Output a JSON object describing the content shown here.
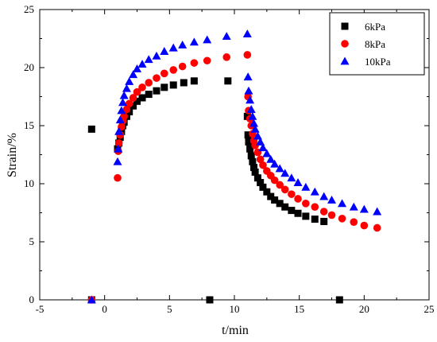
{
  "chart_data": {
    "type": "scatter",
    "title": "",
    "xlabel": "t/min",
    "ylabel": "Strain/%",
    "xlim": [
      -5,
      25
    ],
    "ylim": [
      0,
      25
    ],
    "x_ticks": [
      "-5",
      "0",
      "5",
      "10",
      "15",
      "20",
      "25"
    ],
    "y_ticks": [
      "0",
      "5",
      "10",
      "15",
      "20",
      "25"
    ],
    "grid": false,
    "legend_position": "top-right",
    "series": [
      {
        "name": "6kPa",
        "marker": "square",
        "color": "#000000",
        "points": [
          [
            -1,
            14.7
          ],
          [
            -1,
            0
          ],
          [
            1.0,
            13.0
          ],
          [
            1.1,
            13.5
          ],
          [
            1.2,
            14.0
          ],
          [
            1.3,
            14.5
          ],
          [
            1.4,
            15.0
          ],
          [
            1.5,
            15.3
          ],
          [
            1.7,
            15.8
          ],
          [
            1.9,
            16.2
          ],
          [
            2.2,
            16.7
          ],
          [
            2.5,
            17.1
          ],
          [
            2.9,
            17.4
          ],
          [
            3.4,
            17.7
          ],
          [
            4.0,
            18.0
          ],
          [
            4.6,
            18.3
          ],
          [
            5.3,
            18.5
          ],
          [
            6.1,
            18.7
          ],
          [
            6.9,
            18.85
          ],
          [
            8.1,
            0
          ],
          [
            9.5,
            18.85
          ],
          [
            11.0,
            15.8
          ],
          [
            11.05,
            14.2
          ],
          [
            11.1,
            13.6
          ],
          [
            11.2,
            13.0
          ],
          [
            11.3,
            12.4
          ],
          [
            11.4,
            11.9
          ],
          [
            11.5,
            11.4
          ],
          [
            11.6,
            11.0
          ],
          [
            11.8,
            10.5
          ],
          [
            12.0,
            10.1
          ],
          [
            12.2,
            9.7
          ],
          [
            12.5,
            9.3
          ],
          [
            12.8,
            8.9
          ],
          [
            13.1,
            8.6
          ],
          [
            13.5,
            8.3
          ],
          [
            13.9,
            8.0
          ],
          [
            14.4,
            7.7
          ],
          [
            14.9,
            7.45
          ],
          [
            15.5,
            7.2
          ],
          [
            16.2,
            6.95
          ],
          [
            16.9,
            6.75
          ],
          [
            18.1,
            0
          ]
        ]
      },
      {
        "name": "8kPa",
        "marker": "circle",
        "color": "#ff0000",
        "points": [
          [
            -1,
            0
          ],
          [
            1.0,
            10.5
          ],
          [
            1.05,
            12.8
          ],
          [
            1.1,
            13.5
          ],
          [
            1.2,
            14.2
          ],
          [
            1.3,
            14.9
          ],
          [
            1.4,
            15.4
          ],
          [
            1.5,
            15.8
          ],
          [
            1.7,
            16.4
          ],
          [
            1.9,
            16.9
          ],
          [
            2.2,
            17.4
          ],
          [
            2.5,
            17.9
          ],
          [
            2.9,
            18.3
          ],
          [
            3.4,
            18.7
          ],
          [
            4.0,
            19.1
          ],
          [
            4.6,
            19.5
          ],
          [
            5.3,
            19.8
          ],
          [
            6.0,
            20.1
          ],
          [
            6.9,
            20.4
          ],
          [
            7.9,
            20.6
          ],
          [
            9.4,
            20.9
          ],
          [
            11.0,
            21.1
          ],
          [
            11.05,
            17.5
          ],
          [
            11.1,
            16.3
          ],
          [
            11.2,
            15.6
          ],
          [
            11.3,
            15.0
          ],
          [
            11.4,
            14.3
          ],
          [
            11.5,
            13.7
          ],
          [
            11.6,
            13.3
          ],
          [
            11.8,
            12.7
          ],
          [
            12.0,
            12.1
          ],
          [
            12.2,
            11.6
          ],
          [
            12.5,
            11.1
          ],
          [
            12.8,
            10.7
          ],
          [
            13.1,
            10.3
          ],
          [
            13.5,
            9.9
          ],
          [
            13.9,
            9.5
          ],
          [
            14.4,
            9.1
          ],
          [
            14.9,
            8.7
          ],
          [
            15.5,
            8.3
          ],
          [
            16.2,
            8.0
          ],
          [
            16.9,
            7.6
          ],
          [
            17.5,
            7.3
          ],
          [
            18.3,
            7.0
          ],
          [
            19.2,
            6.7
          ],
          [
            20.0,
            6.4
          ],
          [
            21.0,
            6.2
          ]
        ]
      },
      {
        "name": "10kPa",
        "marker": "triangle",
        "color": "#0000ff",
        "points": [
          [
            -1,
            0
          ],
          [
            1.0,
            11.9
          ],
          [
            1.05,
            13.0
          ],
          [
            1.1,
            14.5
          ],
          [
            1.2,
            15.5
          ],
          [
            1.3,
            16.3
          ],
          [
            1.4,
            17.0
          ],
          [
            1.5,
            17.6
          ],
          [
            1.7,
            18.2
          ],
          [
            1.9,
            18.8
          ],
          [
            2.2,
            19.4
          ],
          [
            2.5,
            19.9
          ],
          [
            2.9,
            20.3
          ],
          [
            3.4,
            20.7
          ],
          [
            4.0,
            21.0
          ],
          [
            4.6,
            21.4
          ],
          [
            5.3,
            21.7
          ],
          [
            6.0,
            21.95
          ],
          [
            6.9,
            22.2
          ],
          [
            7.9,
            22.4
          ],
          [
            9.4,
            22.7
          ],
          [
            11.0,
            22.9
          ],
          [
            11.05,
            19.2
          ],
          [
            11.1,
            18.0
          ],
          [
            11.2,
            17.2
          ],
          [
            11.3,
            16.4
          ],
          [
            11.4,
            15.8
          ],
          [
            11.5,
            15.2
          ],
          [
            11.6,
            14.7
          ],
          [
            11.8,
            14.1
          ],
          [
            12.0,
            13.6
          ],
          [
            12.2,
            13.1
          ],
          [
            12.5,
            12.6
          ],
          [
            12.8,
            12.1
          ],
          [
            13.1,
            11.7
          ],
          [
            13.5,
            11.3
          ],
          [
            13.9,
            10.9
          ],
          [
            14.4,
            10.5
          ],
          [
            14.9,
            10.1
          ],
          [
            15.5,
            9.7
          ],
          [
            16.2,
            9.3
          ],
          [
            16.9,
            8.9
          ],
          [
            17.5,
            8.6
          ],
          [
            18.3,
            8.3
          ],
          [
            19.2,
            8.0
          ],
          [
            20.0,
            7.8
          ],
          [
            21.0,
            7.6
          ]
        ]
      }
    ]
  }
}
